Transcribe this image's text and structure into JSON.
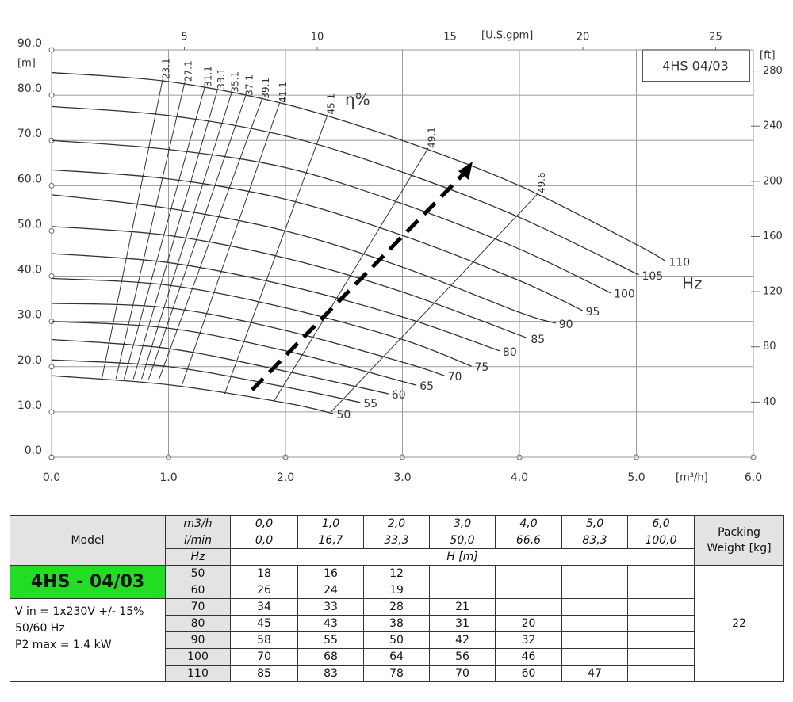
{
  "chart_data": {
    "type": "line",
    "title": "4HS 04/03",
    "xlabel": "[m³/h]",
    "ylabel": "[m]",
    "x2label": "[U.S.gpm]",
    "y2label": "[ft]",
    "annotations": {
      "efficiency": "η%",
      "frequency": "Hz"
    },
    "xlim": [
      0,
      6
    ],
    "ylim": [
      0,
      90
    ],
    "x2lim": [
      0,
      26.417
    ],
    "y2lim": [
      0,
      295.28
    ],
    "xticks": [
      {
        "value": 0,
        "label": "0.0"
      },
      {
        "value": 1,
        "label": "1.0"
      },
      {
        "value": 2,
        "label": "2.0"
      },
      {
        "value": 3,
        "label": "3.0"
      },
      {
        "value": 4,
        "label": "4.0"
      },
      {
        "value": 5,
        "label": "5.0"
      },
      {
        "value": 6,
        "label": "6.0"
      }
    ],
    "yticks": [
      {
        "value": 0,
        "label": "0.0"
      },
      {
        "value": 10,
        "label": "10.0"
      },
      {
        "value": 20,
        "label": "20.0"
      },
      {
        "value": 30,
        "label": "30.0"
      },
      {
        "value": 40,
        "label": "40.0"
      },
      {
        "value": 50,
        "label": "50.0"
      },
      {
        "value": 60,
        "label": "60.0"
      },
      {
        "value": 70,
        "label": "70.0"
      },
      {
        "value": 80,
        "label": "80.0"
      },
      {
        "value": 90,
        "label": "90.0"
      }
    ],
    "x2ticks": [
      5,
      10,
      15,
      20,
      25
    ],
    "y2ticks": [
      40,
      80,
      120,
      160,
      200,
      240,
      280
    ],
    "grid": true,
    "color": "#333333",
    "series": [
      {
        "name": "110",
        "x": [
          0,
          1,
          2,
          3,
          4,
          5,
          5.25
        ],
        "values": [
          85,
          83,
          78,
          70,
          60,
          47,
          43.3
        ]
      },
      {
        "name": "105",
        "x": [
          0,
          1,
          2,
          3,
          4,
          5.02
        ],
        "values": [
          77.5,
          75.5,
          71,
          63,
          53,
          40.3
        ]
      },
      {
        "name": "100",
        "x": [
          0,
          1,
          2,
          3,
          4,
          4.78
        ],
        "values": [
          70,
          68,
          64,
          56,
          46,
          36.3
        ]
      },
      {
        "name": "95",
        "x": [
          0,
          1,
          2,
          3,
          4,
          4.54
        ],
        "values": [
          63.5,
          61.5,
          57,
          49,
          39,
          32.4
        ]
      },
      {
        "name": "90",
        "x": [
          0,
          1,
          2,
          3,
          4,
          4.31
        ],
        "values": [
          58,
          55,
          50,
          42,
          32,
          29.6
        ]
      },
      {
        "name": "85",
        "x": [
          0,
          1,
          2,
          3,
          4.07
        ],
        "values": [
          51,
          49,
          44,
          36.5,
          26.3
        ]
      },
      {
        "name": "80",
        "x": [
          0,
          1,
          2,
          3,
          3.83
        ],
        "values": [
          45,
          43,
          38,
          31,
          23.5
        ]
      },
      {
        "name": "75",
        "x": [
          0,
          1,
          2,
          3,
          3.59
        ],
        "values": [
          39.5,
          38,
          33,
          26,
          20.1
        ]
      },
      {
        "name": "70",
        "x": [
          0,
          1,
          2,
          3,
          3.36
        ],
        "values": [
          34,
          33,
          28,
          21,
          18
        ]
      },
      {
        "name": "65",
        "x": [
          0,
          1,
          2,
          3.12
        ],
        "values": [
          30,
          28.5,
          23.5,
          15.9
        ]
      },
      {
        "name": "60",
        "x": [
          0,
          1,
          2,
          2.88
        ],
        "values": [
          26,
          24,
          19,
          14
        ]
      },
      {
        "name": "55",
        "x": [
          0,
          1,
          2,
          2.64
        ],
        "values": [
          21.5,
          20,
          15.5,
          12.1
        ]
      },
      {
        "name": "50",
        "x": [
          0,
          1,
          2,
          2.41
        ],
        "values": [
          18,
          16,
          12,
          9.6
        ]
      }
    ],
    "efficiency_lines": [
      {
        "label": "23.1",
        "x": [
          0.43,
          0.95
        ],
        "values": [
          17.3,
          83.5
        ]
      },
      {
        "label": "27.1",
        "x": [
          0.55,
          1.14
        ],
        "values": [
          17.3,
          83
        ]
      },
      {
        "label": "31.1",
        "x": [
          0.62,
          1.31
        ],
        "values": [
          17.3,
          81.8
        ]
      },
      {
        "label": "33.1",
        "x": [
          0.7,
          1.42
        ],
        "values": [
          17.3,
          81.3
        ]
      },
      {
        "label": "35.1",
        "x": [
          0.77,
          1.54
        ],
        "values": [
          17.3,
          80.6
        ]
      },
      {
        "label": "37.1",
        "x": [
          0.83,
          1.66
        ],
        "values": [
          17.2,
          79.9
        ]
      },
      {
        "label": "39.1",
        "x": [
          0.92,
          1.8
        ],
        "values": [
          17.3,
          79.2
        ]
      },
      {
        "label": "41.1",
        "x": [
          1.11,
          1.95
        ],
        "values": [
          15.6,
          78.3
        ]
      },
      {
        "label": "45.1",
        "x": [
          1.48,
          2.36
        ],
        "values": [
          14,
          75.7
        ]
      },
      {
        "label": "49.1",
        "x": [
          1.9,
          3.22
        ],
        "values": [
          12.3,
          68.3
        ]
      },
      {
        "label": "49.6",
        "x": [
          2.39,
          4.16
        ],
        "values": [
          10,
          58.3
        ]
      }
    ]
  },
  "table": {
    "header": {
      "model": "Model",
      "packing_weight": "Packing Weight [kg]",
      "flow_rows": [
        {
          "unit": "m3/h",
          "values": [
            "0,0",
            "1,0",
            "2,0",
            "3,0",
            "4,0",
            "5,0",
            "6,0"
          ]
        },
        {
          "unit": "l/min",
          "values": [
            "0,0",
            "16,7",
            "33,3",
            "50,0",
            "66,6",
            "83,3",
            "100,0"
          ]
        }
      ],
      "hz_unit": "Hz",
      "head_unit": "H [m]"
    },
    "model": {
      "name": "4HS - 04/03",
      "specs": [
        "V in = 1x230V +/- 15%",
        "50/60 Hz",
        "P2 max = 1.4 kW"
      ]
    },
    "rows": [
      {
        "hz": 50,
        "head": [
          18,
          16,
          12
        ]
      },
      {
        "hz": 60,
        "head": [
          26,
          24,
          19
        ]
      },
      {
        "hz": 70,
        "head": [
          34,
          33,
          28,
          21
        ]
      },
      {
        "hz": 80,
        "head": [
          45,
          43,
          38,
          31,
          20
        ]
      },
      {
        "hz": 90,
        "head": [
          58,
          55,
          50,
          42,
          32
        ]
      },
      {
        "hz": 100,
        "head": [
          70,
          68,
          64,
          56,
          46
        ]
      },
      {
        "hz": 110,
        "head": [
          85,
          83,
          78,
          70,
          60,
          47
        ]
      }
    ],
    "packing_weight": 22
  }
}
